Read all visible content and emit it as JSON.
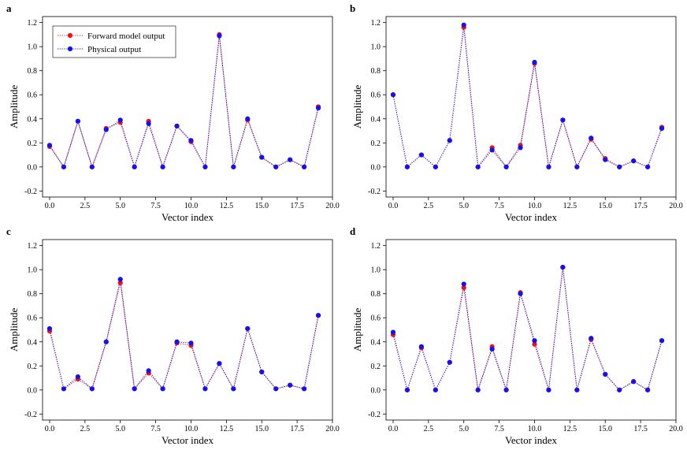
{
  "colors": {
    "forward": "#e8141c",
    "physical": "#1414e6",
    "axis": "#000000"
  },
  "chart_data": [
    {
      "type": "scatter",
      "panel_label": "a",
      "xlabel": "Vector index",
      "ylabel": "Amplitude",
      "xlim": [
        -0.5,
        20.0
      ],
      "ylim": [
        -0.25,
        1.25
      ],
      "xticks": [
        "0.0",
        "2.5",
        "5.0",
        "7.5",
        "10.0",
        "12.5",
        "15.0",
        "17.5",
        "20.0"
      ],
      "yticks": [
        "-0.2",
        "0.0",
        "0.2",
        "0.4",
        "0.6",
        "0.8",
        "1.0",
        "1.2"
      ],
      "legend": {
        "placement": "top-left",
        "entries": [
          "Forward model output",
          "Physical output"
        ]
      },
      "x": [
        0,
        1,
        2,
        3,
        4,
        5,
        6,
        7,
        8,
        9,
        10,
        11,
        12,
        13,
        14,
        15,
        16,
        17,
        18,
        19
      ],
      "series": [
        {
          "name": "Forward model output",
          "values": [
            0.17,
            0.0,
            0.38,
            0.0,
            0.32,
            0.37,
            0.0,
            0.38,
            0.0,
            0.34,
            0.21,
            0.0,
            1.1,
            0.0,
            0.39,
            0.08,
            0.0,
            0.06,
            0.0,
            0.5
          ]
        },
        {
          "name": "Physical output",
          "values": [
            0.18,
            0.0,
            0.38,
            0.0,
            0.31,
            0.39,
            0.0,
            0.36,
            0.0,
            0.34,
            0.22,
            0.0,
            1.09,
            0.0,
            0.4,
            0.08,
            0.0,
            0.06,
            0.0,
            0.49
          ]
        }
      ]
    },
    {
      "type": "scatter",
      "panel_label": "b",
      "xlabel": "Vector index",
      "ylabel": "Amplitude",
      "xlim": [
        -0.5,
        20.0
      ],
      "ylim": [
        -0.25,
        1.25
      ],
      "xticks": [
        "0.0",
        "2.5",
        "5.0",
        "7.5",
        "10.0",
        "12.5",
        "15.0",
        "17.5",
        "20.0"
      ],
      "yticks": [
        "-0.2",
        "0.0",
        "0.2",
        "0.4",
        "0.6",
        "0.8",
        "1.0",
        "1.2"
      ],
      "x": [
        0,
        1,
        2,
        3,
        4,
        5,
        6,
        7,
        8,
        9,
        10,
        11,
        12,
        13,
        14,
        15,
        16,
        17,
        18,
        19
      ],
      "series": [
        {
          "name": "Forward model output",
          "values": [
            0.6,
            0.0,
            0.1,
            0.0,
            0.22,
            1.16,
            0.0,
            0.16,
            0.0,
            0.18,
            0.86,
            0.0,
            0.39,
            0.0,
            0.23,
            0.07,
            0.0,
            0.05,
            0.0,
            0.33
          ]
        },
        {
          "name": "Physical output",
          "values": [
            0.6,
            0.0,
            0.1,
            0.0,
            0.22,
            1.18,
            0.0,
            0.14,
            0.0,
            0.16,
            0.87,
            0.0,
            0.39,
            0.0,
            0.24,
            0.06,
            0.0,
            0.05,
            0.0,
            0.32
          ]
        }
      ]
    },
    {
      "type": "scatter",
      "panel_label": "c",
      "xlabel": "Vector index",
      "ylabel": "Amplitude",
      "xlim": [
        -0.5,
        20.0
      ],
      "ylim": [
        -0.25,
        1.25
      ],
      "xticks": [
        "0.0",
        "2.5",
        "5.0",
        "7.5",
        "10.0",
        "12.5",
        "15.0",
        "17.5",
        "20.0"
      ],
      "yticks": [
        "-0.2",
        "0.0",
        "0.2",
        "0.4",
        "0.6",
        "0.8",
        "1.0",
        "1.2"
      ],
      "x": [
        0,
        1,
        2,
        3,
        4,
        5,
        6,
        7,
        8,
        9,
        10,
        11,
        12,
        13,
        14,
        15,
        16,
        17,
        18,
        19
      ],
      "series": [
        {
          "name": "Forward model output",
          "values": [
            0.49,
            0.01,
            0.09,
            0.01,
            0.4,
            0.89,
            0.01,
            0.14,
            0.01,
            0.39,
            0.37,
            0.01,
            0.22,
            0.01,
            0.51,
            0.15,
            0.01,
            0.04,
            0.01,
            0.62
          ]
        },
        {
          "name": "Physical output",
          "values": [
            0.51,
            0.01,
            0.11,
            0.01,
            0.4,
            0.92,
            0.01,
            0.16,
            0.01,
            0.4,
            0.39,
            0.01,
            0.22,
            0.01,
            0.51,
            0.15,
            0.01,
            0.04,
            0.01,
            0.62
          ]
        }
      ]
    },
    {
      "type": "scatter",
      "panel_label": "d",
      "xlabel": "Vector index",
      "ylabel": "Amplitude",
      "xlim": [
        -0.5,
        20.0
      ],
      "ylim": [
        -0.25,
        1.25
      ],
      "xticks": [
        "0.0",
        "2.5",
        "5.0",
        "7.5",
        "10.0",
        "12.5",
        "15.0",
        "17.5",
        "20.0"
      ],
      "yticks": [
        "-0.2",
        "0.0",
        "0.2",
        "0.4",
        "0.6",
        "0.8",
        "1.0",
        "1.2"
      ],
      "x": [
        0,
        1,
        2,
        3,
        4,
        5,
        6,
        7,
        8,
        9,
        10,
        11,
        12,
        13,
        14,
        15,
        16,
        17,
        18,
        19
      ],
      "series": [
        {
          "name": "Forward model output",
          "values": [
            0.46,
            0.0,
            0.35,
            0.0,
            0.23,
            0.85,
            0.0,
            0.36,
            0.0,
            0.81,
            0.38,
            0.0,
            1.02,
            0.0,
            0.42,
            0.13,
            0.0,
            0.07,
            0.0,
            0.41
          ]
        },
        {
          "name": "Physical output",
          "values": [
            0.48,
            0.0,
            0.36,
            0.0,
            0.23,
            0.88,
            0.0,
            0.34,
            0.0,
            0.8,
            0.41,
            0.0,
            1.02,
            0.0,
            0.43,
            0.13,
            0.0,
            0.07,
            0.0,
            0.41
          ]
        }
      ]
    }
  ]
}
